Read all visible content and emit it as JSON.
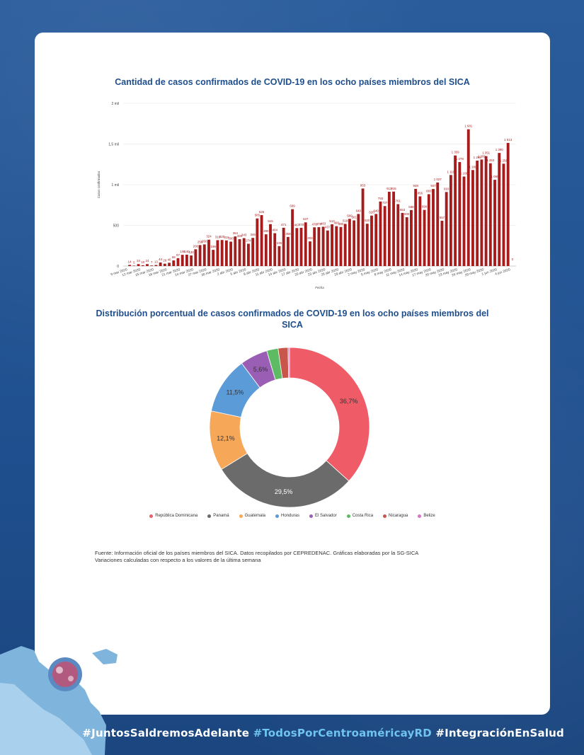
{
  "footer": {
    "tag1": "#JuntosSaldremosAdelante",
    "tag2": "#TodosPorCentroaméricayRD",
    "tag3": "#IntegraciónEnSalud"
  },
  "colors": {
    "bar": "#a61c1c",
    "title": "#1f4e8c",
    "background": "#1f4f8e"
  },
  "source_note": {
    "line1": "Fuente: Información oficial de los países miembros del SICA. Datos recopilados por CEPREDENAC. Gráficas elaboradas por la SG-SICA",
    "line2": "Variaciones calculadas con respecto a los valores de la última semana"
  },
  "chart_data": [
    {
      "type": "bar",
      "title": "Cantidad de casos confirmados de COVID-19 en los ocho países miembros del SICA",
      "xlabel": "Fecha",
      "ylabel": "Casos confirmados",
      "ylim": [
        0,
        2000
      ],
      "y_ticks": [
        0,
        500,
        1000,
        1500,
        2000
      ],
      "y_tick_labels": [
        "0",
        "500",
        "1 mil",
        "1,5 mil",
        "2 mil"
      ],
      "x_tick_labels": [
        "9 mar 2020",
        "12 mar 2020",
        "15 mar 2020",
        "18 mar 2020",
        "21 mar 2020",
        "24 mar 2020",
        "27 mar 2020",
        "30 mar 2020",
        "2 abr 2020",
        "5 abr 2020",
        "8 abr 2020",
        "11 abr 2020",
        "14 abr 2020",
        "17 abr 2020",
        "20 abr 2020",
        "23 abr 2020",
        "26 abr 2020",
        "29 abr 2020",
        "2 may 2020",
        "5 may 2020",
        "8 may 2020",
        "11 may 2020",
        "14 may 2020",
        "17 may 2020",
        "20 may 2020",
        "23 may 2020",
        "26 may 2020",
        "29 may 2020",
        "1 jun 2020",
        "4 jun 2020"
      ],
      "grid": true,
      "values": [
        14,
        5,
        24,
        10,
        24,
        7,
        13,
        44,
        29,
        40,
        69,
        97,
        138,
        140,
        130,
        206,
        258,
        266,
        324,
        199,
        318,
        320,
        315,
        300,
        364,
        330,
        343,
        274,
        346,
        585,
        626,
        390,
        515,
        404,
        245,
        471,
        358,
        699,
        467,
        470,
        537,
        303,
        476,
        478,
        483,
        437,
        513,
        490,
        480,
        518,
        580,
        561,
        640,
        953,
        520,
        620,
        640,
        793,
        737,
        913,
        915,
        761,
        653,
        600,
        688,
        948,
        856,
        690,
        883,
        947,
        1027,
        557,
        910,
        1119,
        1359,
        1278,
        1100,
        1681,
        1180,
        1296,
        1309,
        1351,
        1263,
        1060,
        1390,
        1258,
        1513
      ],
      "data_labels": [
        "14",
        "5",
        "24",
        "10",
        "24",
        "7",
        "13",
        "44",
        "29",
        "40",
        "69",
        "97",
        "138",
        "140",
        "130",
        "206",
        "258",
        "266",
        "324",
        "199",
        "318",
        "320",
        "315",
        "300",
        "364",
        "330",
        "343",
        "274",
        "346",
        "585",
        "626",
        "390",
        "515",
        "404",
        "245",
        "471",
        "358",
        "699",
        "467",
        "470",
        "537",
        "303",
        "476",
        "478",
        "483",
        "437",
        "513",
        "490",
        "480",
        "518",
        "580",
        "561",
        "640",
        "953",
        "520",
        "620",
        "640",
        "793",
        "737",
        "913",
        "915",
        "761",
        "653",
        "600",
        "688",
        "948",
        "856",
        "690",
        "883",
        "947",
        "1 027",
        "557",
        "910",
        "1 119",
        "1 359",
        "1 278",
        "1 100",
        "1 681",
        "1 180",
        "1 296",
        "1 309",
        "1 351",
        "1 263",
        "1 060",
        "1 390",
        "1 258",
        "1 513"
      ],
      "final_label": "0"
    },
    {
      "type": "pie",
      "title": "Distribución porcentual de casos confirmados de COVID-19 en los ocho países miembros del SICA",
      "donut": true,
      "legend_position": "bottom",
      "categories": [
        "República Dominicana",
        "Panamá",
        "Guatemala",
        "Honduras",
        "El Salvador",
        "Costa Rica",
        "Nicaragua",
        "Belize"
      ],
      "values": [
        36.7,
        29.5,
        12.1,
        11.5,
        5.6,
        2.3,
        2.0,
        0.3
      ],
      "labels": [
        "36,7%",
        "29,5%",
        "12,1%",
        "11,5%",
        "5,6%",
        "",
        "",
        ""
      ],
      "colors": [
        "#ef5b66",
        "#6b6b6b",
        "#f7a758",
        "#5a9bd8",
        "#9a5fb5",
        "#5dbb63",
        "#c9564b",
        "#d776c3"
      ]
    }
  ]
}
